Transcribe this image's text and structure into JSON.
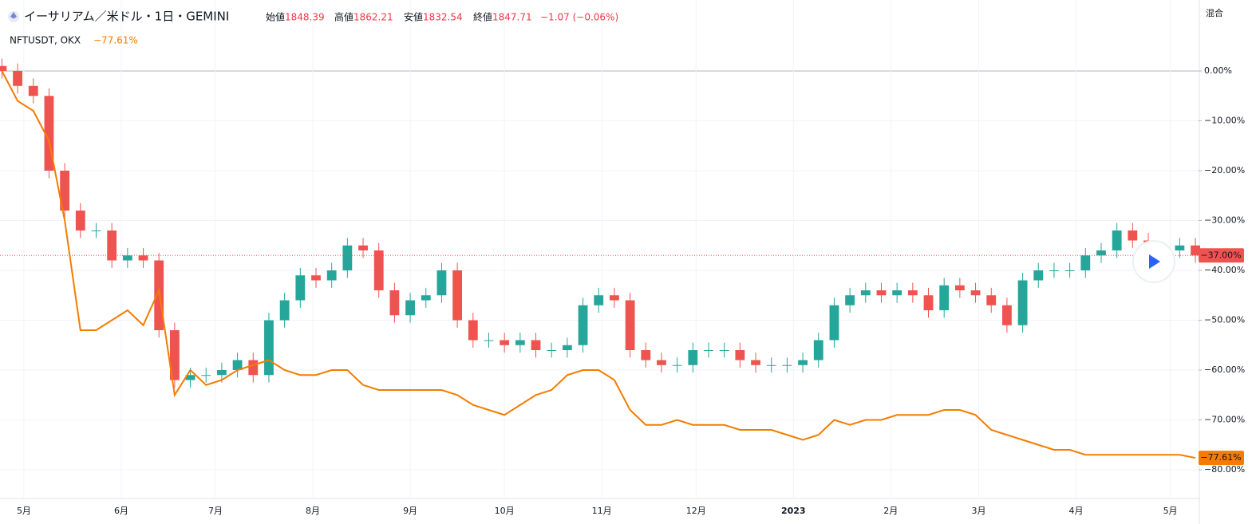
{
  "chart_data": {
    "type": "candlestick",
    "title": "イーサリアム／米ドル・1日・GEMINI",
    "ohlc_legend": {
      "labels": [
        "始値",
        "高値",
        "安値",
        "終値"
      ],
      "values": [
        1848.39,
        1862.21,
        1832.54,
        1847.71
      ],
      "change": "−1.07 (−0.06%)"
    },
    "scale_mode": "混合",
    "xlim": [
      0,
      381
    ],
    "xticks": [
      {
        "value": 7,
        "label": "5月"
      },
      {
        "value": 38,
        "label": "6月"
      },
      {
        "value": 68,
        "label": "7月"
      },
      {
        "value": 99,
        "label": "8月"
      },
      {
        "value": 130,
        "label": "9月"
      },
      {
        "value": 160,
        "label": "10月"
      },
      {
        "value": 191,
        "label": "11月"
      },
      {
        "value": 221,
        "label": "12月"
      },
      {
        "value": 252,
        "label": "2023"
      },
      {
        "value": 283,
        "label": "2月"
      },
      {
        "value": 311,
        "label": "3月"
      },
      {
        "value": 342,
        "label": "4月"
      },
      {
        "value": 372,
        "label": "5月"
      }
    ],
    "ylim": [
      -85.76,
      14.24
    ],
    "yticks": [
      {
        "value": 0,
        "label": "0.00%"
      },
      {
        "value": -10,
        "label": "−10.00%"
      },
      {
        "value": -20,
        "label": "−20.00%"
      },
      {
        "value": -30,
        "label": "−30.00%"
      },
      {
        "value": -40,
        "label": "−40.00%"
      },
      {
        "value": -50,
        "label": "−50.00%"
      },
      {
        "value": -60,
        "label": "−60.00%"
      },
      {
        "value": -70,
        "label": "−70.00%"
      },
      {
        "value": -80,
        "label": "−80.00%"
      }
    ],
    "grid": true,
    "x": [
      0,
      5,
      10,
      15,
      20,
      25,
      30,
      35,
      40,
      45,
      50,
      55,
      60,
      65,
      70,
      75,
      80,
      85,
      90,
      95,
      100,
      105,
      110,
      115,
      120,
      125,
      130,
      135,
      140,
      145,
      150,
      155,
      160,
      165,
      170,
      175,
      180,
      185,
      190,
      195,
      200,
      205,
      210,
      215,
      220,
      225,
      230,
      235,
      240,
      245,
      250,
      255,
      260,
      265,
      270,
      275,
      280,
      285,
      290,
      295,
      300,
      305,
      310,
      315,
      320,
      325,
      330,
      335,
      340,
      345,
      350,
      355,
      360,
      365,
      370,
      375,
      380
    ],
    "series": [
      {
        "type": "candlestick",
        "up_color": "#26a69a",
        "down_color": "#ef5350",
        "last_value": -37,
        "last_label": "−37.00%",
        "open": [
          1,
          0,
          -3,
          -5,
          -20,
          -28,
          -32,
          -32,
          -38,
          -37,
          -38,
          -52,
          -62,
          -61,
          -61,
          -60,
          -58,
          -61,
          -50,
          -46,
          -41,
          -42,
          -40,
          -35,
          -36,
          -44,
          -49,
          -46,
          -45,
          -40,
          -50,
          -54,
          -54,
          -55,
          -54,
          -56,
          -56,
          -55,
          -47,
          -45,
          -46,
          -56,
          -58,
          -59,
          -59,
          -56,
          -56,
          -56,
          -58,
          -59,
          -59,
          -59,
          -58,
          -54,
          -47,
          -45,
          -44,
          -45,
          -44,
          -45,
          -48,
          -43,
          -44,
          -45,
          -47,
          -51,
          -42,
          -40,
          -40,
          -40,
          -37,
          -36,
          -32,
          -34,
          -36,
          -36,
          -35
        ],
        "high": [
          2.5,
          1.5,
          -1.5,
          -3.5,
          -18.5,
          -26.5,
          -30.5,
          -30.5,
          -35.5,
          -35.5,
          -36.5,
          -50.5,
          -59.5,
          -59.5,
          -58.5,
          -56.5,
          -56.5,
          -48.5,
          -44.5,
          -39.5,
          -39.5,
          -38.5,
          -33.5,
          -33.5,
          -34.5,
          -42.5,
          -44.5,
          -43.5,
          -38.5,
          -38.5,
          -48.5,
          -52.5,
          -52.5,
          -52.5,
          -52.5,
          -54.5,
          -53.5,
          -45.5,
          -43.5,
          -43.5,
          -44.5,
          -54.5,
          -56.5,
          -57.5,
          -54.5,
          -54.5,
          -54.5,
          -54.5,
          -56.5,
          -57.5,
          -57.5,
          -56.5,
          -52.5,
          -45.5,
          -43.5,
          -42.5,
          -42.5,
          -42.5,
          -42.5,
          -43.5,
          -41.5,
          -41.5,
          -42.5,
          -43.5,
          -45.5,
          -40.5,
          -38.5,
          -38.5,
          -38.5,
          -35.5,
          -34.5,
          -30.5,
          -30.5,
          -32.5,
          -34.5,
          -33.5,
          -33.5
        ],
        "low": [
          -1.5,
          -4.5,
          -6.5,
          -21.5,
          -29.5,
          -33.5,
          -33.5,
          -39.5,
          -39.5,
          -39.5,
          -53.5,
          -63.5,
          -63.5,
          -62.5,
          -62.5,
          -61.5,
          -62.5,
          -62.5,
          -51.5,
          -47.5,
          -43.5,
          -43.5,
          -41.5,
          -37.5,
          -45.5,
          -50.5,
          -50.5,
          -47.5,
          -46.5,
          -51.5,
          -55.5,
          -55.5,
          -56.5,
          -56.5,
          -57.5,
          -57.5,
          -57.5,
          -56.5,
          -48.5,
          -47.5,
          -57.5,
          -59.5,
          -60.5,
          -60.5,
          -60.5,
          -57.5,
          -57.5,
          -59.5,
          -60.5,
          -60.5,
          -60.5,
          -60.5,
          -59.5,
          -55.5,
          -48.5,
          -46.5,
          -46.5,
          -46.5,
          -46.5,
          -49.5,
          -49.5,
          -45.5,
          -46.5,
          -48.5,
          -52.5,
          -52.5,
          -43.5,
          -41.5,
          -41.5,
          -41.5,
          -38.5,
          -37.5,
          -35.5,
          -37.5,
          -37.5,
          -37.5,
          -38.5
        ],
        "close": [
          0,
          -3,
          -5,
          -20,
          -28,
          -32,
          -32,
          -38,
          -37,
          -38,
          -52,
          -62,
          -61,
          -61,
          -60,
          -58,
          -61,
          -50,
          -46,
          -41,
          -42,
          -40,
          -35,
          -36,
          -44,
          -49,
          -46,
          -45,
          -40,
          -50,
          -54,
          -54,
          -55,
          -54,
          -56,
          -56,
          -55,
          -47,
          -45,
          -46,
          -56,
          -58,
          -59,
          -59,
          -56,
          -56,
          -56,
          -58,
          -59,
          -59,
          -59,
          -58,
          -54,
          -47,
          -45,
          -44,
          -45,
          -44,
          -45,
          -48,
          -43,
          -44,
          -45,
          -47,
          -51,
          -42,
          -40,
          -40,
          -40,
          -37,
          -36,
          -32,
          -34,
          -36,
          -36,
          -35,
          -37
        ]
      },
      {
        "type": "line",
        "name": "NFTUSDT, OKX",
        "color": "#f57c00",
        "legend_label": "−77.61%",
        "last_value": -77.61,
        "last_label": "−77.61%",
        "values": [
          0,
          -6,
          -8,
          -14,
          -30,
          -52,
          -52,
          -50,
          -48,
          -51,
          -44,
          -65,
          -60,
          -63,
          -62,
          -60,
          -59,
          -58,
          -60,
          -61,
          -61,
          -60,
          -60,
          -63,
          -64,
          -64,
          -64,
          -64,
          -64,
          -65,
          -67,
          -68,
          -69,
          -67,
          -65,
          -64,
          -61,
          -60,
          -60,
          -62,
          -68,
          -71,
          -71,
          -70,
          -71,
          -71,
          -71,
          -72,
          -72,
          -72,
          -73,
          -74,
          -73,
          -70,
          -71,
          -70,
          -70,
          -69,
          -69,
          -69,
          -68,
          -68,
          -69,
          -72,
          -73,
          -74,
          -75,
          -76,
          -76,
          -77,
          -77,
          -77,
          -77,
          -77,
          -77,
          -77,
          -77.61
        ]
      }
    ]
  }
}
